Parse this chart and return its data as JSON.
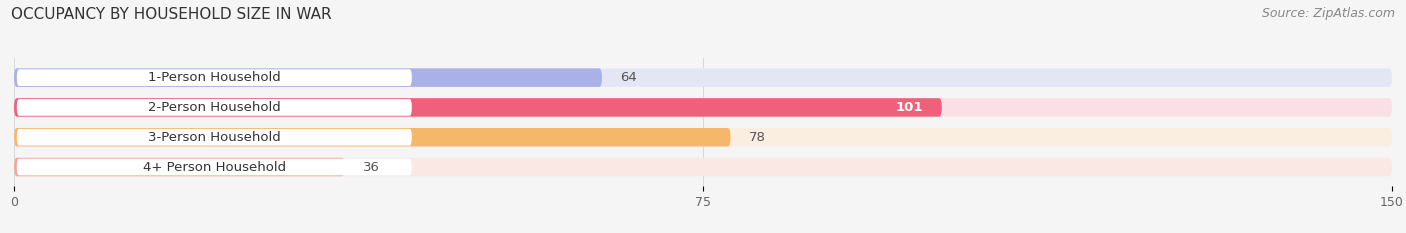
{
  "title": "OCCUPANCY BY HOUSEHOLD SIZE IN WAR",
  "source": "Source: ZipAtlas.com",
  "categories": [
    "1-Person Household",
    "2-Person Household",
    "3-Person Household",
    "4+ Person Household"
  ],
  "values": [
    64,
    101,
    78,
    36
  ],
  "bar_colors": [
    "#aab0e8",
    "#f0607a",
    "#f5b86a",
    "#f0a898"
  ],
  "bar_bg_colors": [
    "#e4e6f4",
    "#fae0e6",
    "#faeee0",
    "#fae8e4"
  ],
  "label_bg_color": "#ffffff",
  "xlim": [
    0,
    150
  ],
  "xticks": [
    0,
    75,
    150
  ],
  "title_fontsize": 11,
  "source_fontsize": 9,
  "label_fontsize": 9.5,
  "tick_fontsize": 9,
  "bar_height": 0.62,
  "background_color": "#f5f5f5",
  "value_inside": [
    false,
    true,
    false,
    false
  ],
  "value_colors_inside": [
    "#555555",
    "#ffffff",
    "#555555",
    "#555555"
  ]
}
